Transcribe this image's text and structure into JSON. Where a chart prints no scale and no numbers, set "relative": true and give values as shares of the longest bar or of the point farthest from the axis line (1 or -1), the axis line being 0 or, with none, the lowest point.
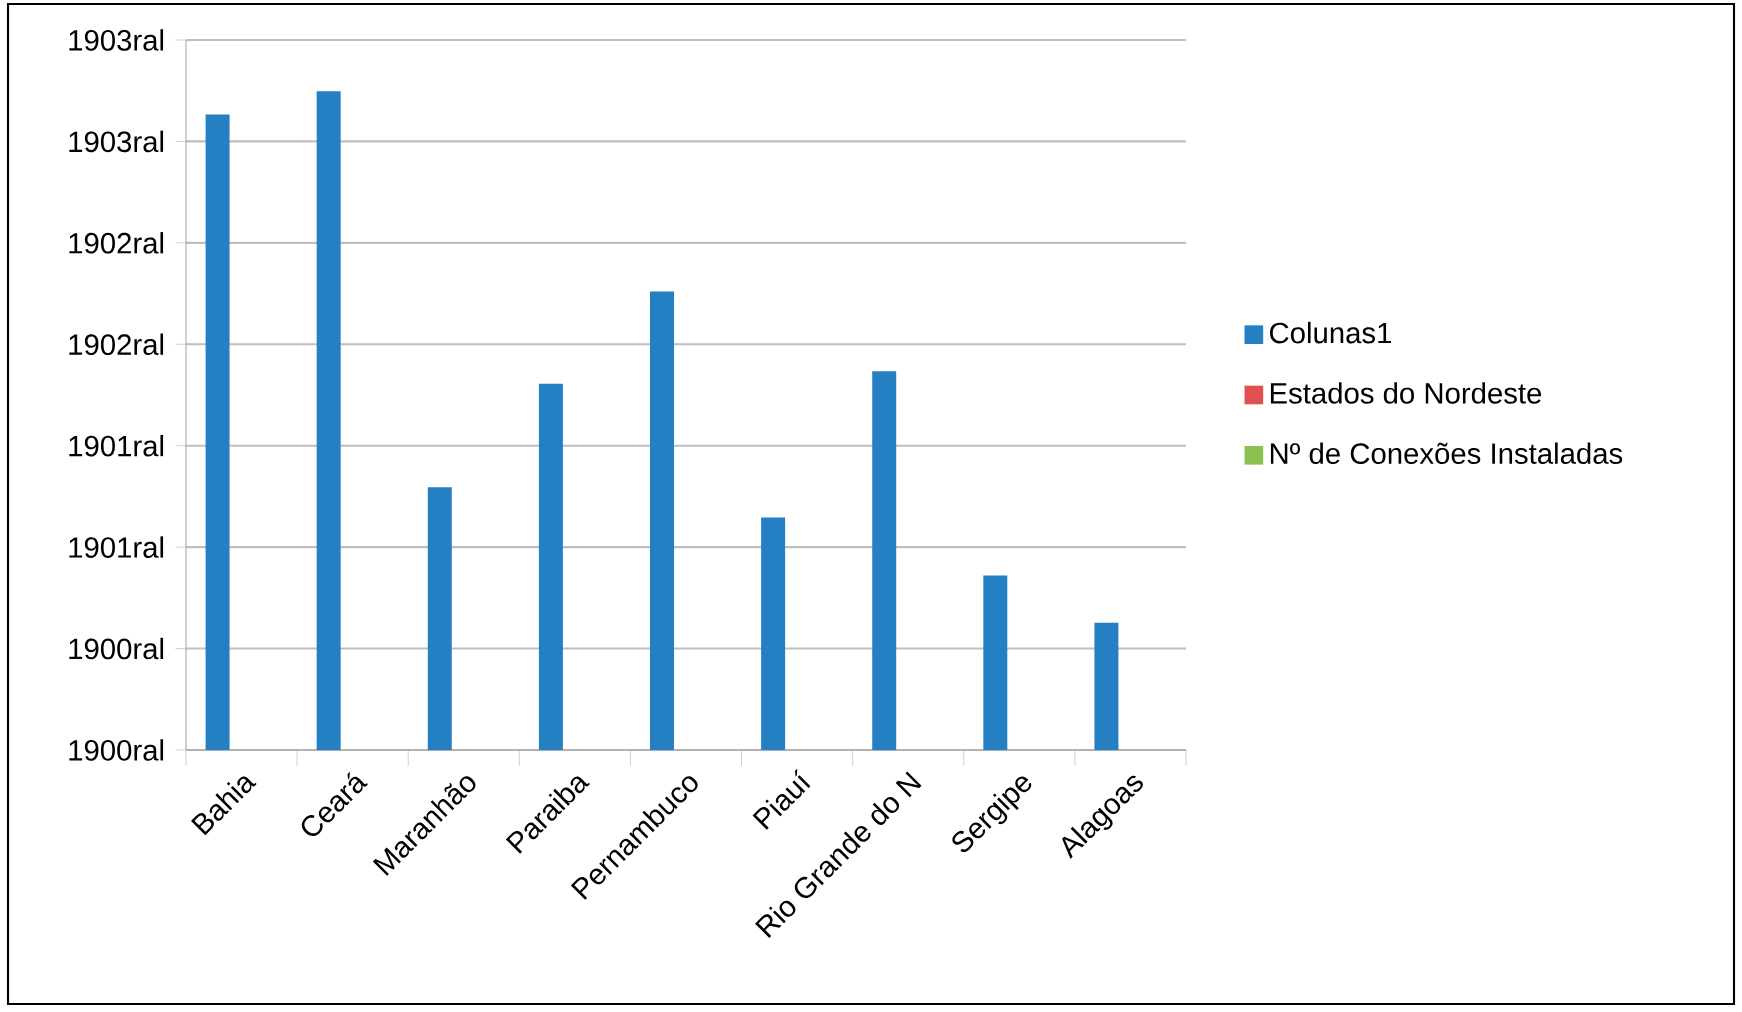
{
  "chart_data": {
    "type": "bar",
    "categories": [
      "Bahia",
      "Ceará",
      "Maranhão",
      "Paraiba",
      "Pernambuco",
      "Piauí",
      "Rio Grande do N",
      "Sergipe",
      "Alagoas"
    ],
    "series": [
      {
        "name": "Colunas1",
        "color": "#2580c3",
        "values": [
          0.965,
          1,
          0.399,
          0.556,
          0.696,
          0.353,
          0.575,
          0.265,
          0.193
        ]
      },
      {
        "name": "Estados do Nordeste",
        "color": "#e05050",
        "values": [
          null,
          null,
          null,
          null,
          null,
          null,
          null,
          null,
          null
        ]
      },
      {
        "name": "Nº de Conexões Instaladas",
        "color": "#8cc152",
        "values": [
          null,
          null,
          null,
          null,
          null,
          null,
          null,
          null,
          null
        ]
      }
    ],
    "relative": true,
    "annotations": [
      "1900ral",
      "1900ral",
      "1901ral",
      "1901ral",
      "1902ral",
      "1902ral",
      "1903ral",
      "1903ral"
    ],
    "grid": "y",
    "legend": "right"
  }
}
